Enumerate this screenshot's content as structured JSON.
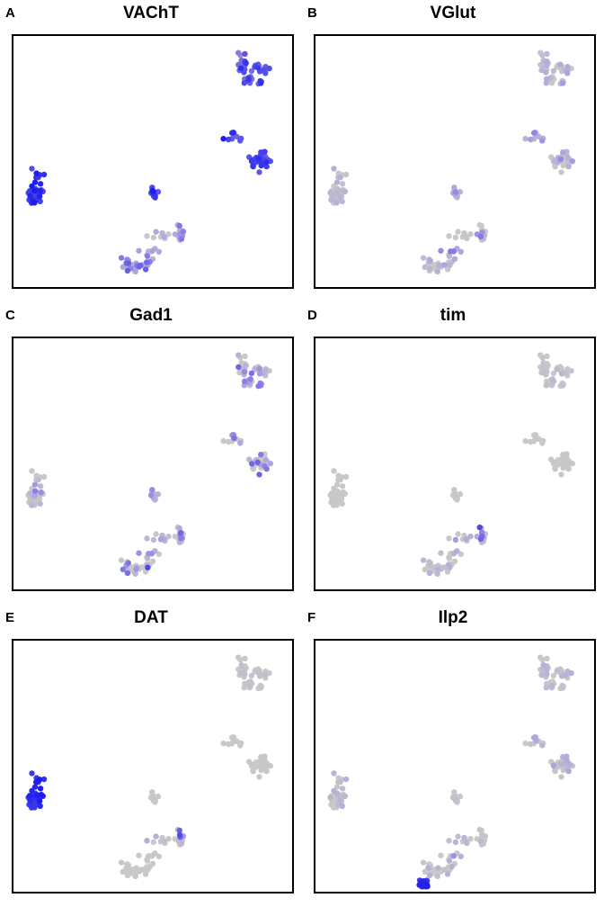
{
  "colors": {
    "zero": "#c8c8c8",
    "low": "#b0a0e0",
    "high": "#1a1aee",
    "frame": "#000000"
  },
  "chart_data": [
    {
      "type": "scatter",
      "panel": "A",
      "title": "VAChT",
      "xlabel": "",
      "ylabel": "",
      "grid": false,
      "note_value_scale": "expression 0 (grey) to 1 (blue)",
      "points": []
    },
    {
      "type": "scatter",
      "panel": "B",
      "title": "VGlut",
      "xlabel": "",
      "ylabel": "",
      "grid": false,
      "points": []
    },
    {
      "type": "scatter",
      "panel": "C",
      "title": "Gad1",
      "xlabel": "",
      "ylabel": "",
      "grid": false,
      "points": []
    },
    {
      "type": "scatter",
      "panel": "D",
      "title": "tim",
      "xlabel": "",
      "ylabel": "",
      "grid": false,
      "points": []
    },
    {
      "type": "scatter",
      "panel": "E",
      "title": "DAT",
      "xlabel": "",
      "ylabel": "",
      "grid": false,
      "points": []
    },
    {
      "type": "scatter",
      "panel": "F",
      "title": "Ilp2",
      "xlabel": "",
      "ylabel": "",
      "grid": false,
      "points": []
    }
  ]
}
